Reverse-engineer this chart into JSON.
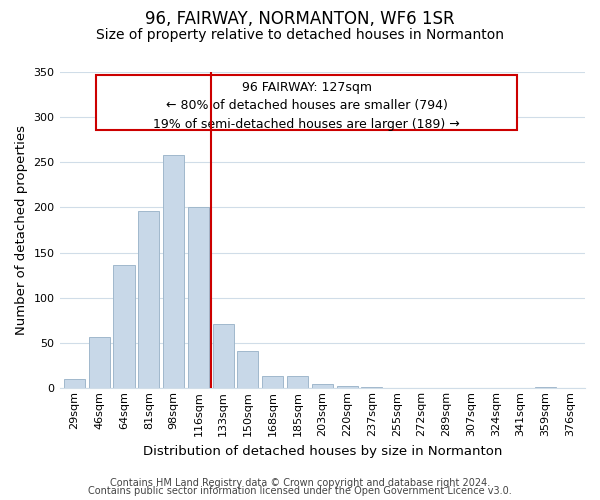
{
  "title": "96, FAIRWAY, NORMANTON, WF6 1SR",
  "subtitle": "Size of property relative to detached houses in Normanton",
  "xlabel": "Distribution of detached houses by size in Normanton",
  "ylabel": "Number of detached properties",
  "footer_lines": [
    "Contains HM Land Registry data © Crown copyright and database right 2024.",
    "Contains public sector information licensed under the Open Government Licence v3.0."
  ],
  "bar_labels": [
    "29sqm",
    "46sqm",
    "64sqm",
    "81sqm",
    "98sqm",
    "116sqm",
    "133sqm",
    "150sqm",
    "168sqm",
    "185sqm",
    "203sqm",
    "220sqm",
    "237sqm",
    "255sqm",
    "272sqm",
    "289sqm",
    "307sqm",
    "324sqm",
    "341sqm",
    "359sqm",
    "376sqm"
  ],
  "bar_values": [
    10,
    57,
    136,
    196,
    258,
    200,
    71,
    41,
    13,
    14,
    5,
    3,
    1,
    0,
    0,
    0,
    0,
    0,
    0,
    1,
    0
  ],
  "bar_color": "#c8d8e8",
  "bar_edge_color": "#a0b8cc",
  "red_line_x": 5.5,
  "annotation_text_line1": "96 FAIRWAY: 127sqm",
  "annotation_text_line2": "← 80% of detached houses are smaller (794)",
  "annotation_text_line3": "19% of semi-detached houses are larger (189) →",
  "ylim": [
    0,
    350
  ],
  "yticks": [
    0,
    50,
    100,
    150,
    200,
    250,
    300,
    350
  ],
  "bg_color": "#ffffff",
  "grid_color": "#d0dde8",
  "title_fontsize": 12,
  "subtitle_fontsize": 10,
  "axis_label_fontsize": 9.5,
  "tick_fontsize": 8,
  "annotation_fontsize": 9,
  "footer_fontsize": 7
}
